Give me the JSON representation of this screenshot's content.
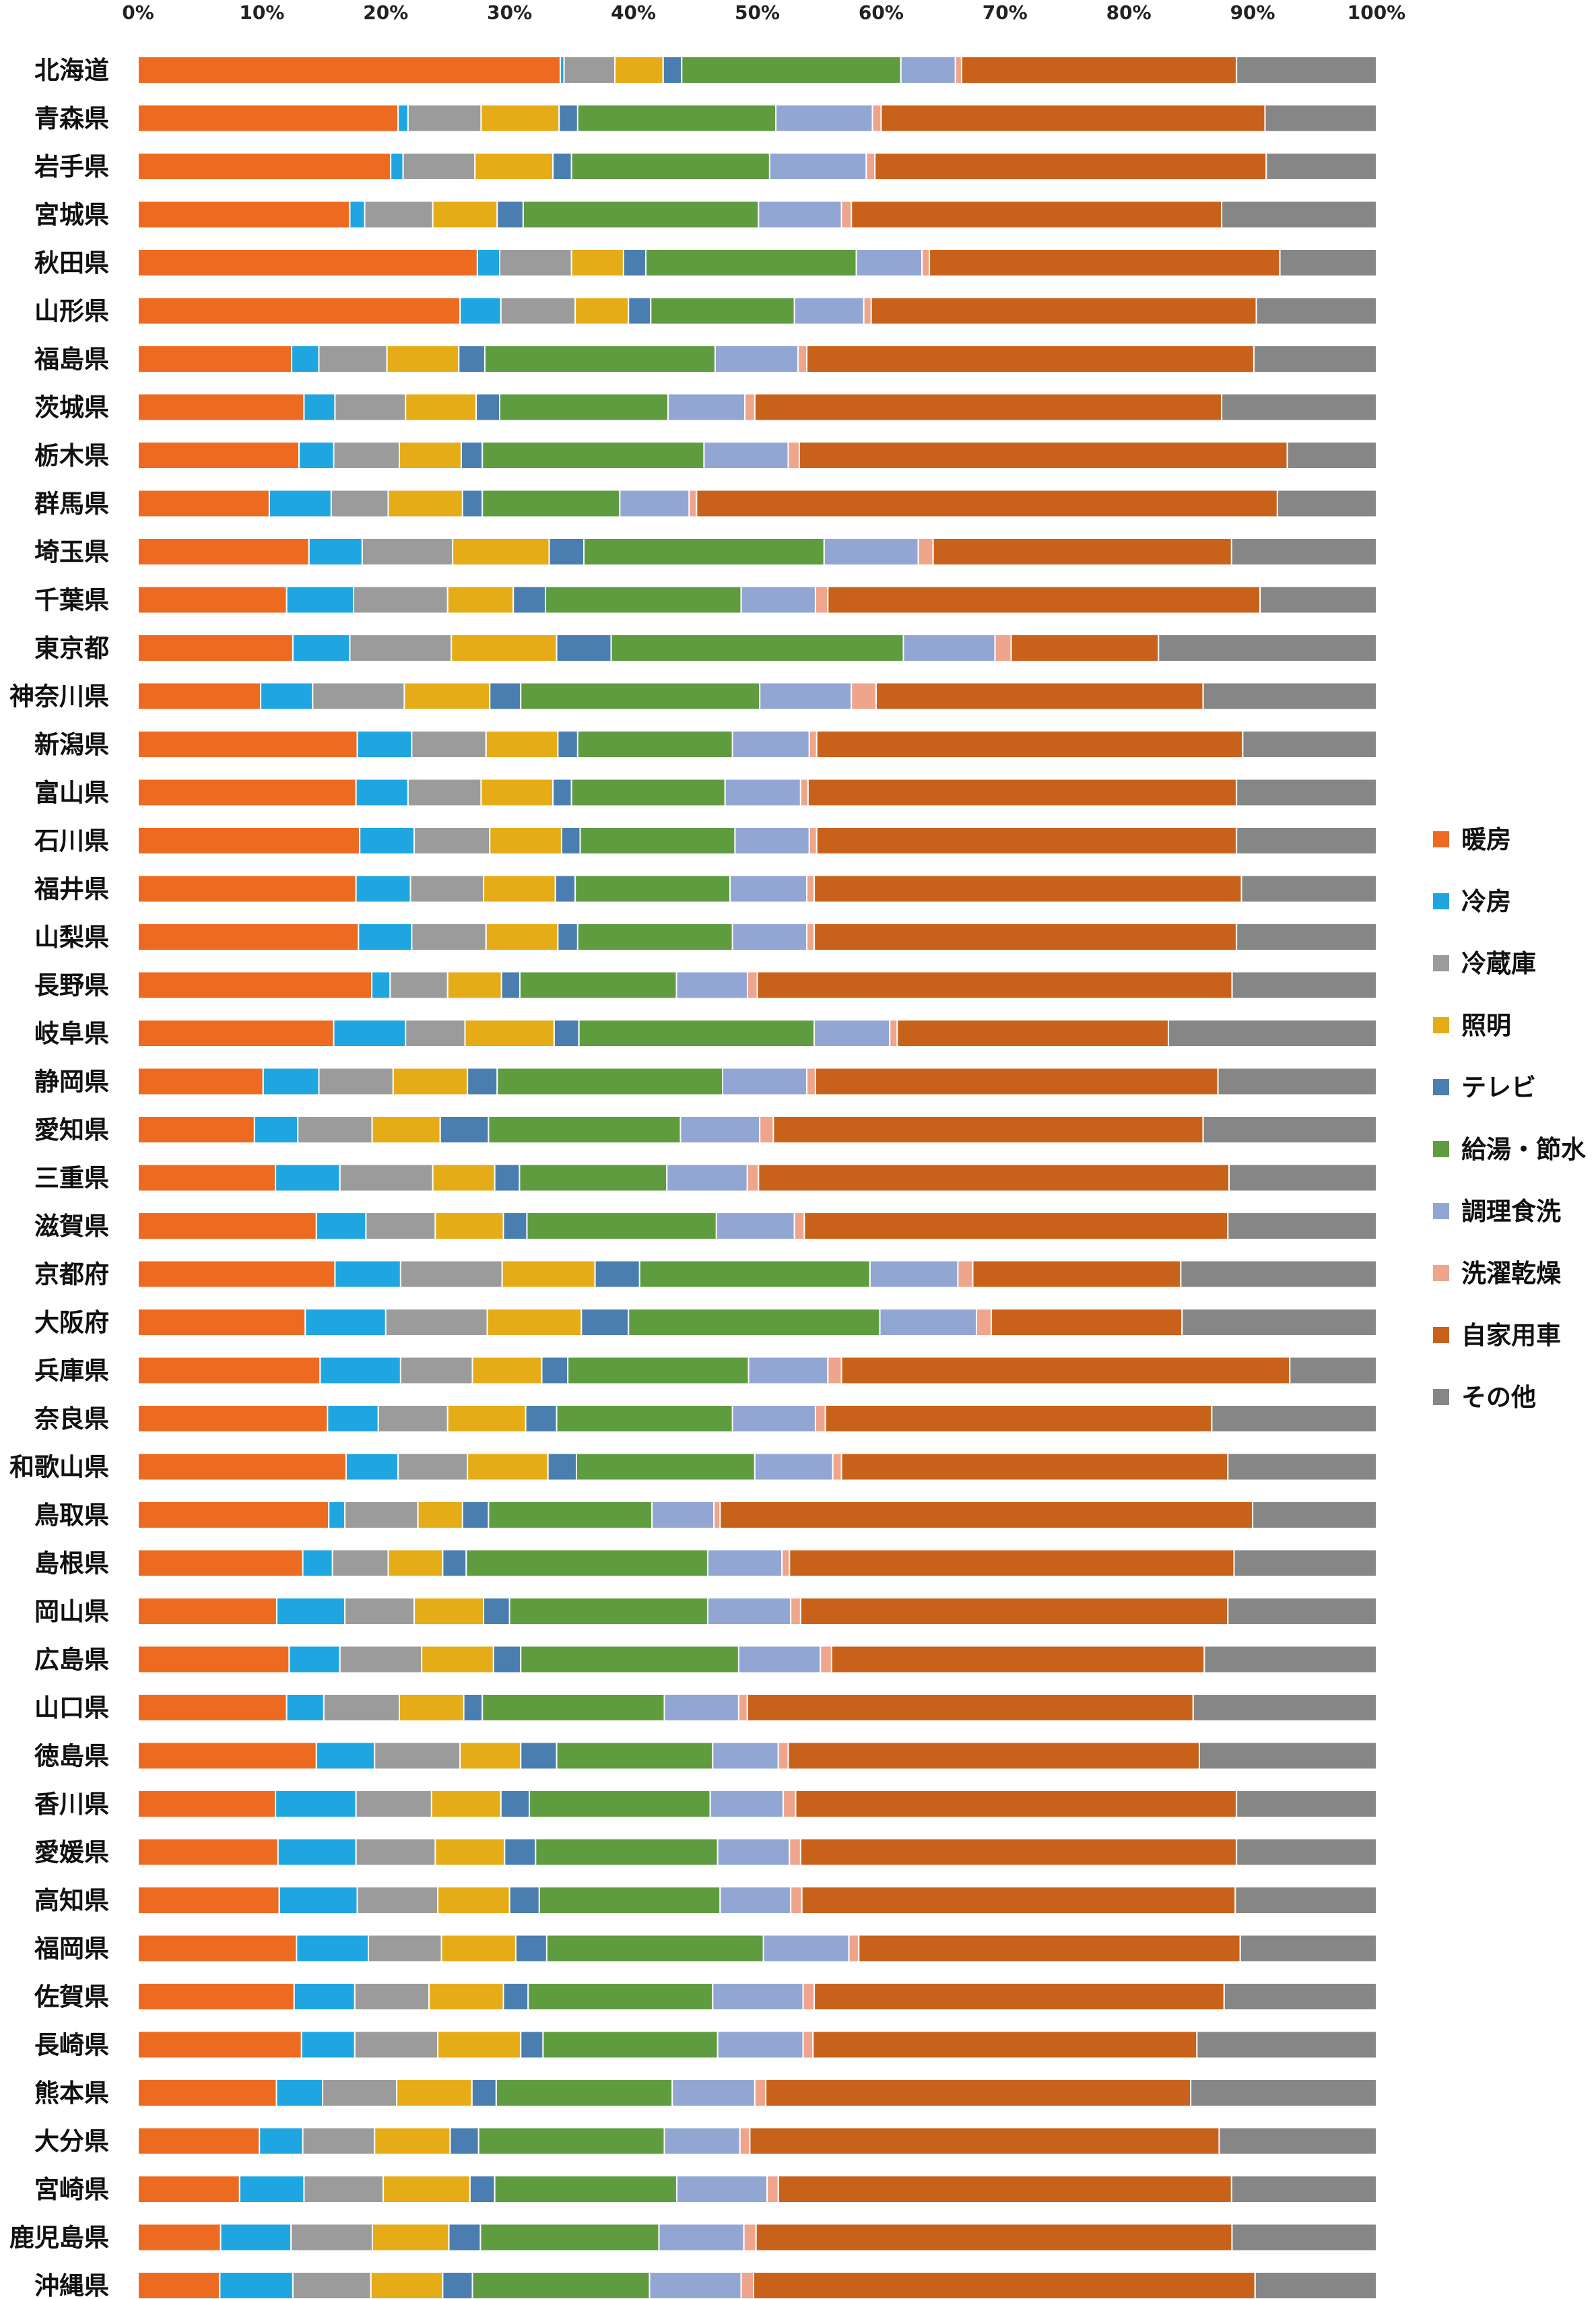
{
  "chart_data": {
    "type": "bar",
    "orientation": "horizontal",
    "stacked": "100%",
    "title": "",
    "xlabel": "",
    "ylabel": "",
    "xlim": [
      0,
      100
    ],
    "x_ticks": [
      "0%",
      "10%",
      "20%",
      "30%",
      "40%",
      "50%",
      "60%",
      "70%",
      "80%",
      "90%",
      "100%"
    ],
    "grid": false,
    "legend_position": "right",
    "categories": [
      "北海道",
      "青森県",
      "岩手県",
      "宮城県",
      "秋田県",
      "山形県",
      "福島県",
      "茨城県",
      "栃木県",
      "群馬県",
      "埼玉県",
      "千葉県",
      "東京都",
      "神奈川県",
      "新潟県",
      "富山県",
      "石川県",
      "福井県",
      "山梨県",
      "長野県",
      "岐阜県",
      "静岡県",
      "愛知県",
      "三重県",
      "滋賀県",
      "京都府",
      "大阪府",
      "兵庫県",
      "奈良県",
      "和歌山県",
      "鳥取県",
      "島根県",
      "岡山県",
      "広島県",
      "山口県",
      "徳島県",
      "香川県",
      "愛媛県",
      "高知県",
      "福岡県",
      "佐賀県",
      "長崎県",
      "熊本県",
      "大分県",
      "宮崎県",
      "鹿児島県",
      "沖縄県"
    ],
    "series": [
      {
        "name": "暖房",
        "color": "#ED6B21",
        "values": [
          34.1,
          21.0,
          20.4,
          17.1,
          27.4,
          26.0,
          12.4,
          13.4,
          13.0,
          10.6,
          13.8,
          12.0,
          12.5,
          9.9,
          17.7,
          17.6,
          17.9,
          17.6,
          17.8,
          19.1,
          15.8,
          10.1,
          9.4,
          11.1,
          14.4,
          15.9,
          13.5,
          14.7,
          15.3,
          16.8,
          15.4,
          13.3,
          11.2,
          12.2,
          12.0,
          14.4,
          11.1,
          11.3,
          11.4,
          12.8,
          12.6,
          13.2,
          11.4,
          9.8,
          8.2,
          6.8,
          6.6
        ]
      },
      {
        "name": "冷房",
        "color": "#1FA6E0",
        "values": [
          0.3,
          0.8,
          1.0,
          1.2,
          1.8,
          3.3,
          2.2,
          2.5,
          2.8,
          5.0,
          4.3,
          5.4,
          4.6,
          4.2,
          4.4,
          4.2,
          4.4,
          4.4,
          4.3,
          1.5,
          5.8,
          4.5,
          3.5,
          5.2,
          4.0,
          5.3,
          6.5,
          6.5,
          4.1,
          4.2,
          1.3,
          2.4,
          5.5,
          4.1,
          3.0,
          4.7,
          6.5,
          6.3,
          6.3,
          5.8,
          4.9,
          4.3,
          3.8,
          3.5,
          5.2,
          5.8,
          5.9
        ]
      },
      {
        "name": "冷蔵庫",
        "color": "#9B9B9B",
        "values": [
          4.1,
          5.9,
          5.8,
          5.5,
          5.8,
          6.0,
          5.5,
          5.7,
          5.3,
          4.6,
          7.3,
          7.6,
          8.2,
          7.4,
          6.0,
          5.9,
          6.1,
          5.9,
          6.0,
          4.7,
          4.8,
          6.0,
          6.0,
          7.5,
          5.6,
          8.2,
          8.2,
          5.8,
          5.6,
          5.6,
          5.9,
          4.5,
          5.6,
          6.6,
          6.1,
          6.9,
          6.1,
          6.4,
          6.5,
          5.9,
          6.0,
          6.7,
          6.1,
          5.8,
          6.4,
          6.7,
          6.3
        ]
      },
      {
        "name": "照明",
        "color": "#E5AC18",
        "values": [
          3.9,
          6.3,
          6.3,
          5.2,
          4.2,
          4.3,
          5.8,
          5.7,
          5.0,
          6.0,
          7.8,
          5.3,
          8.5,
          6.9,
          5.8,
          5.8,
          5.8,
          5.8,
          5.8,
          4.4,
          7.2,
          6.0,
          5.5,
          5.0,
          5.5,
          7.5,
          7.6,
          5.6,
          6.3,
          6.5,
          3.6,
          4.4,
          5.6,
          5.8,
          5.2,
          4.9,
          5.6,
          5.6,
          5.8,
          6.0,
          6.0,
          6.7,
          6.2,
          6.1,
          7.0,
          6.3,
          5.8
        ]
      },
      {
        "name": "テレビ",
        "color": "#4A7EB0",
        "values": [
          1.5,
          1.5,
          1.5,
          2.1,
          1.8,
          1.8,
          2.1,
          1.9,
          1.7,
          1.6,
          2.8,
          2.6,
          4.4,
          2.5,
          1.6,
          1.5,
          1.5,
          1.6,
          1.6,
          1.5,
          2.0,
          2.4,
          3.9,
          2.0,
          1.9,
          3.6,
          3.8,
          2.1,
          2.5,
          2.3,
          2.1,
          1.9,
          2.1,
          2.2,
          1.5,
          2.9,
          2.3,
          2.5,
          2.4,
          2.5,
          2.0,
          1.8,
          2.0,
          2.3,
          2.0,
          2.6,
          2.4
        ]
      },
      {
        "name": "給湯・節水",
        "color": "#5E9C3F",
        "values": [
          17.7,
          16.0,
          16.0,
          19.0,
          17.0,
          11.6,
          18.6,
          13.6,
          17.9,
          11.1,
          19.4,
          15.8,
          23.6,
          19.3,
          12.5,
          12.4,
          12.5,
          12.5,
          12.5,
          12.8,
          19.0,
          18.2,
          15.5,
          11.9,
          15.3,
          18.6,
          20.3,
          14.6,
          14.2,
          14.4,
          13.2,
          19.5,
          16.0,
          17.6,
          14.7,
          12.6,
          14.6,
          14.7,
          14.6,
          17.5,
          14.9,
          14.1,
          14.5,
          15.0,
          14.7,
          14.7,
          14.3
        ]
      },
      {
        "name": "調理食洗",
        "color": "#92A6D4",
        "values": [
          4.4,
          7.8,
          7.8,
          6.7,
          5.3,
          5.6,
          6.7,
          6.2,
          6.8,
          5.6,
          7.6,
          6.0,
          7.4,
          7.4,
          6.2,
          6.1,
          6.0,
          6.2,
          6.0,
          5.8,
          6.1,
          6.8,
          6.4,
          6.5,
          6.3,
          7.1,
          7.8,
          6.4,
          6.7,
          6.3,
          5.0,
          6.0,
          6.7,
          6.6,
          6.0,
          5.3,
          5.9,
          5.8,
          5.7,
          6.9,
          7.3,
          6.9,
          6.8,
          6.1,
          7.3,
          7.0,
          7.4
        ]
      },
      {
        "name": "洗濯乾燥",
        "color": "#EFA48C",
        "values": [
          0.5,
          0.7,
          0.7,
          0.8,
          0.6,
          0.6,
          0.7,
          0.8,
          0.9,
          0.6,
          1.2,
          1.0,
          1.3,
          2.0,
          0.6,
          0.6,
          0.6,
          0.6,
          0.6,
          0.8,
          0.6,
          0.7,
          1.1,
          0.9,
          0.8,
          1.2,
          1.2,
          1.1,
          0.8,
          0.7,
          0.5,
          0.6,
          0.8,
          0.9,
          0.7,
          0.8,
          1.0,
          0.9,
          0.9,
          0.8,
          0.9,
          0.8,
          0.9,
          0.8,
          0.9,
          1.0,
          1.0
        ]
      },
      {
        "name": "自家用車",
        "color": "#C8621B",
        "values": [
          22.2,
          31.0,
          31.6,
          29.9,
          28.3,
          31.1,
          36.1,
          37.7,
          39.4,
          46.9,
          24.1,
          34.9,
          11.9,
          26.4,
          34.4,
          34.6,
          33.9,
          34.5,
          34.1,
          38.8,
          21.9,
          32.5,
          34.7,
          38.0,
          34.2,
          16.8,
          15.4,
          36.2,
          31.2,
          31.2,
          43.0,
          35.9,
          34.5,
          30.1,
          36.0,
          33.2,
          35.6,
          35.2,
          35.0,
          30.8,
          33.1,
          31.0,
          35.0,
          37.9,
          36.6,
          39.2,
          40.5
        ]
      },
      {
        "name": "その他",
        "color": "#868686",
        "values": [
          11.3,
          9.0,
          8.9,
          12.5,
          7.8,
          9.7,
          9.9,
          12.5,
          7.2,
          8.0,
          11.7,
          9.4,
          17.6,
          14.0,
          10.8,
          11.3,
          11.3,
          10.9,
          11.3,
          11.8,
          16.8,
          12.8,
          14.0,
          11.9,
          12.0,
          15.8,
          15.7,
          7.0,
          13.3,
          12.0,
          10.0,
          11.5,
          12.0,
          13.9,
          14.8,
          14.3,
          11.3,
          11.3,
          11.4,
          11.0,
          12.3,
          14.5,
          15.3,
          12.7,
          11.7,
          11.9,
          9.8
        ]
      }
    ]
  }
}
